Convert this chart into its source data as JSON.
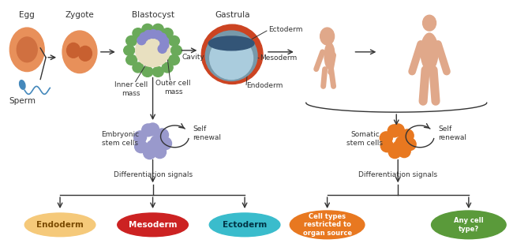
{
  "bg_color": "#ffffff",
  "egg_color": "#E8905A",
  "egg_inner_color": "#D07040",
  "zygote_color": "#E8905A",
  "zygote_inner_color": "#C86030",
  "blastocyst_outer_color": "#6aaa5a",
  "blastocyst_inner_color": "#E8E0C0",
  "blastocyst_cells_color": "#8888CC",
  "embryonic_cells_color": "#9999CC",
  "somatic_cells_color": "#E87820",
  "sperm_color": "#4488BB",
  "arrow_color": "#333333",
  "skin_color": "#E0A88A",
  "gastrula_outer": "#CC4422",
  "gastrula_mid": "#7799AA",
  "gastrula_inner": "#AACCDD",
  "gastrula_disc": "#335577",
  "left_ovals": [
    {
      "label": "Endoderm",
      "color": "#F5C97A",
      "text_color": "#7B4A00"
    },
    {
      "label": "Mesoderm",
      "color": "#CC2222",
      "text_color": "#ffffff"
    },
    {
      "label": "Ectoderm",
      "color": "#3ABCCC",
      "text_color": "#003344"
    }
  ],
  "right_ovals": [
    {
      "label": "Cell types\nrestricted to\norgan source",
      "color": "#E87820",
      "text_color": "#ffffff"
    },
    {
      "label": "Any cell\ntype?",
      "color": "#5A9A3A",
      "text_color": "#ffffff"
    }
  ],
  "label_fontsize": 7.5,
  "small_fontsize": 6.5
}
